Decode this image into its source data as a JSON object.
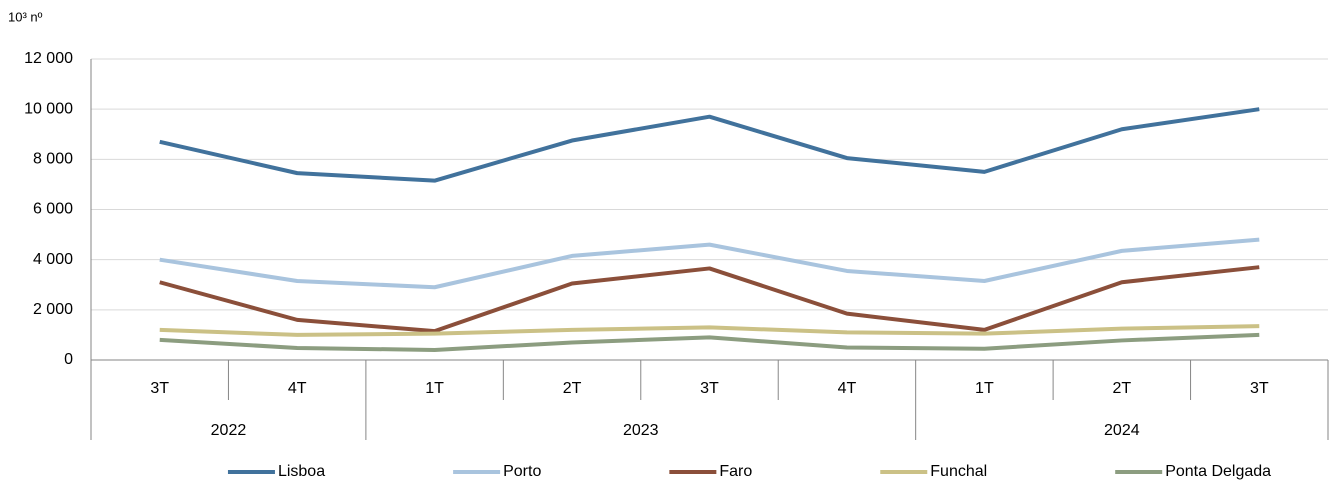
{
  "chart_data": {
    "type": "line",
    "unit_label": "10³ nº",
    "groups": [
      {
        "label": "2022",
        "quarters": [
          "3T",
          "4T"
        ]
      },
      {
        "label": "2023",
        "quarters": [
          "1T",
          "2T",
          "3T",
          "4T"
        ]
      },
      {
        "label": "2024",
        "quarters": [
          "1T",
          "2T",
          "3T"
        ]
      }
    ],
    "series": [
      {
        "name": "Lisboa",
        "color": "#41729c",
        "values": [
          8700,
          7450,
          7150,
          8750,
          9700,
          8050,
          7500,
          9200,
          10000
        ]
      },
      {
        "name": "Porto",
        "color": "#a9c4de",
        "values": [
          4000,
          3150,
          2900,
          4150,
          4600,
          3550,
          3150,
          4350,
          4800
        ]
      },
      {
        "name": "Faro",
        "color": "#8b4f3a",
        "values": [
          3100,
          1600,
          1150,
          3050,
          3650,
          1850,
          1200,
          3100,
          3700
        ]
      },
      {
        "name": "Funchal",
        "color": "#cbc186",
        "values": [
          1200,
          1000,
          1050,
          1200,
          1300,
          1100,
          1050,
          1250,
          1350
        ]
      },
      {
        "name": "Ponta Delgada",
        "color": "#8c9d80",
        "values": [
          800,
          480,
          400,
          700,
          900,
          500,
          450,
          780,
          1000
        ]
      }
    ],
    "ylim": [
      0,
      12000
    ],
    "yticks": [
      0,
      {
        "value": 2000,
        "label": "2 000"
      },
      {
        "value": 4000,
        "label": "4 000"
      },
      {
        "value": 6000,
        "label": "6 000"
      },
      {
        "value": 8000,
        "label": "8 000"
      },
      {
        "value": 10000,
        "label": "10 000"
      },
      {
        "value": 12000,
        "label": "12 000"
      }
    ],
    "grid": true,
    "legend": "bottom"
  }
}
